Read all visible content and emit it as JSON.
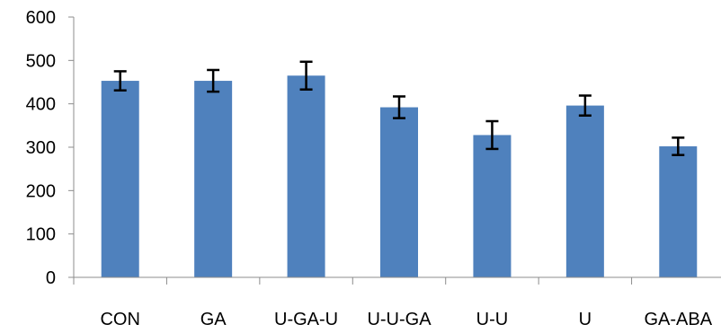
{
  "chart_data": {
    "type": "bar",
    "title": "",
    "xlabel": "",
    "ylabel": "",
    "categories": [
      "CON",
      "GA",
      "U-GA-U",
      "U-U-GA",
      "U-U",
      "U",
      "GA-ABA"
    ],
    "values": [
      453,
      453,
      465,
      392,
      328,
      396,
      302
    ],
    "error": [
      22,
      25,
      32,
      25,
      32,
      23,
      20
    ],
    "ylim": [
      0,
      600
    ],
    "yticks": [
      0,
      100,
      200,
      300,
      400,
      500,
      600
    ],
    "ytick_labels": [
      "0",
      "100",
      "200",
      "300",
      "400",
      "500",
      "600"
    ],
    "grid": false,
    "legend": "none",
    "colors": {
      "bar": "#4f81bd",
      "axis": "#8c8c8c",
      "error_bar": "#000000"
    }
  }
}
